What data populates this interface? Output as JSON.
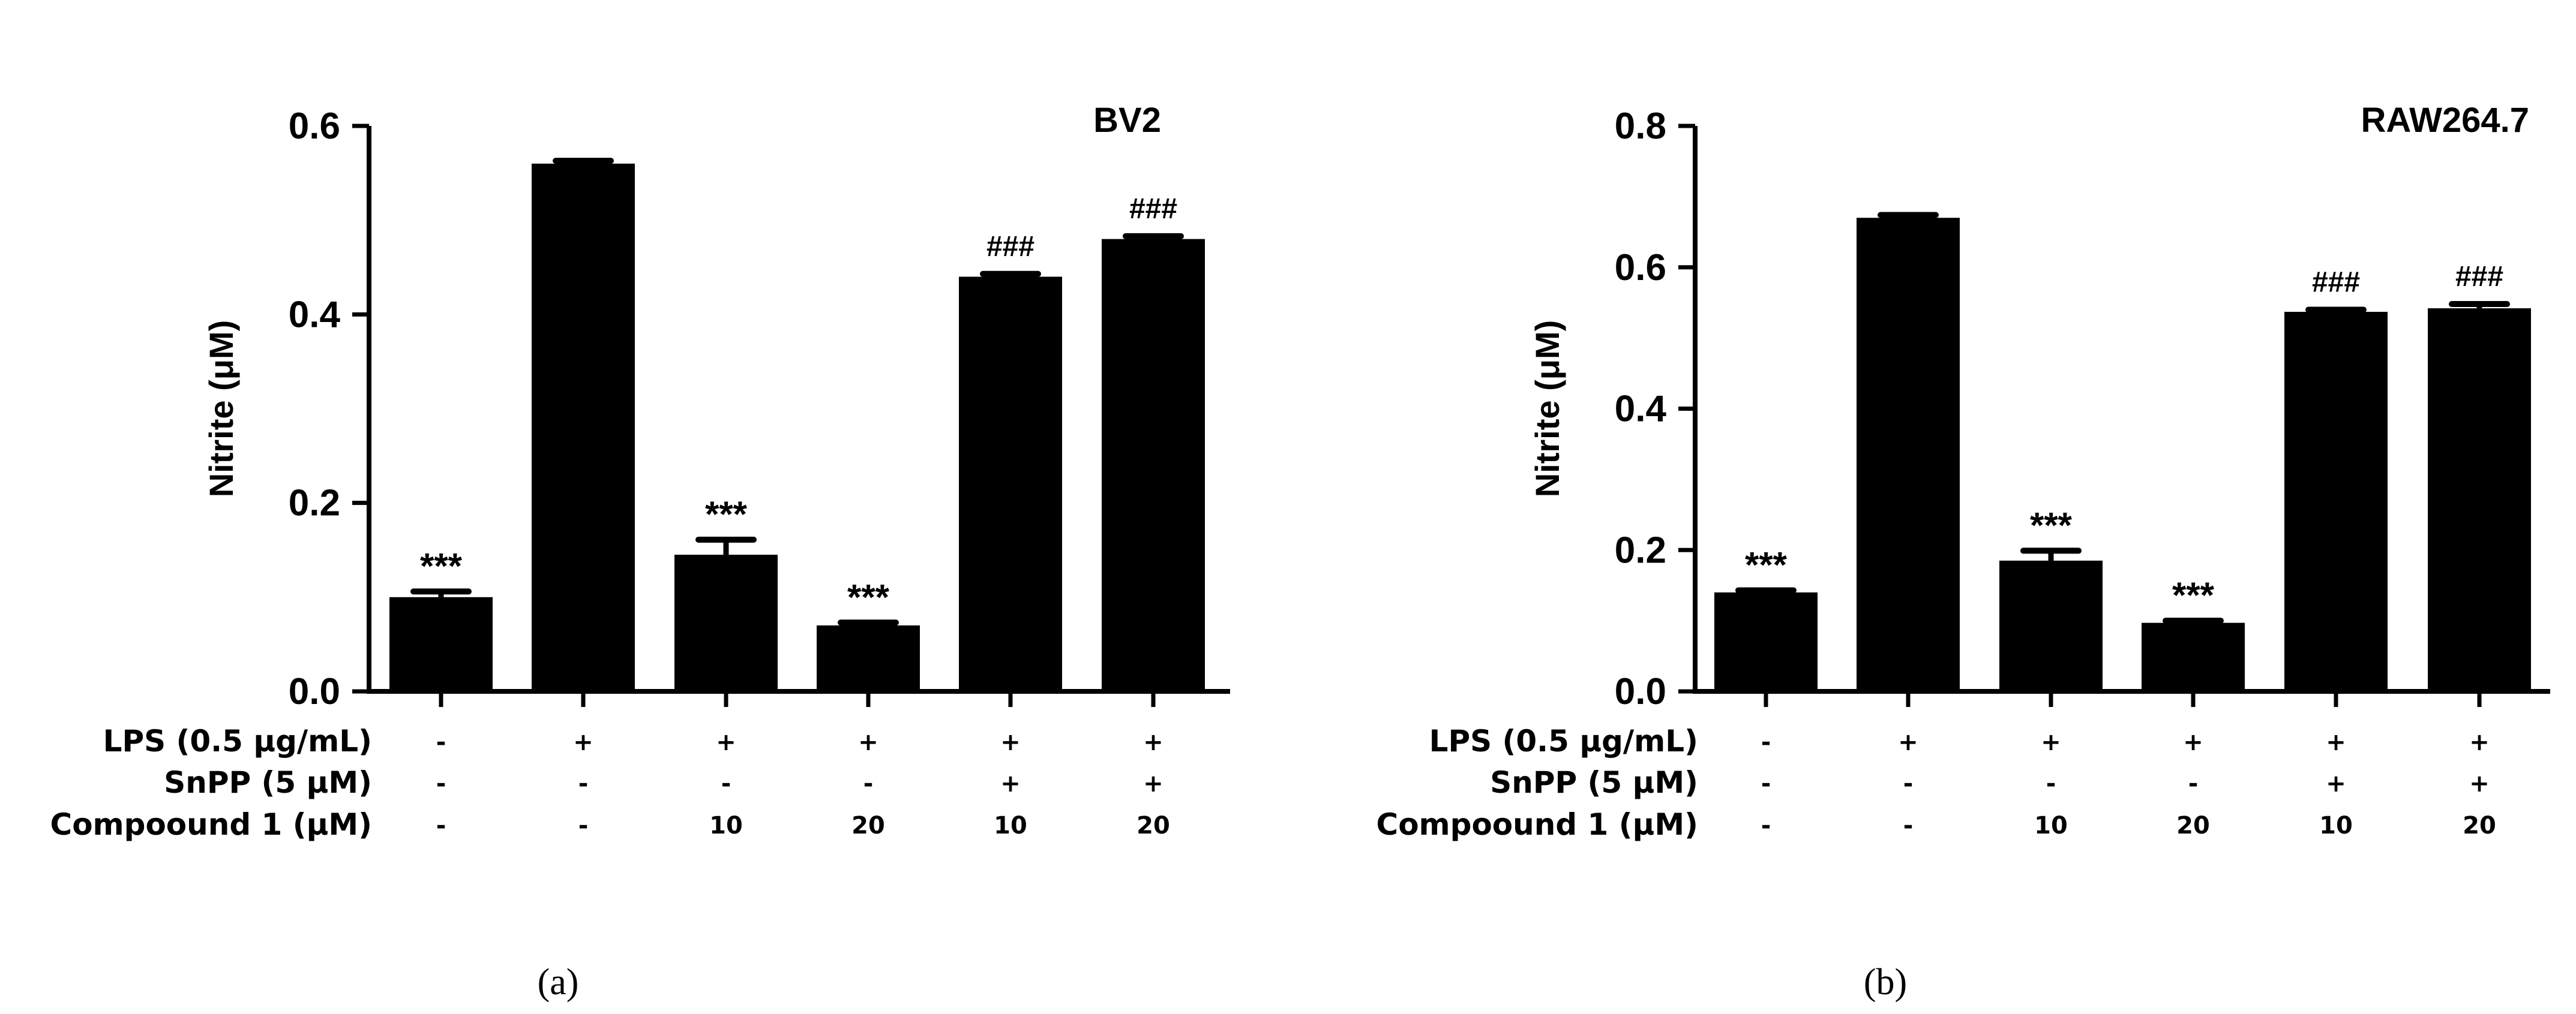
{
  "chart_data": [
    {
      "type": "bar",
      "panel_label": "(a)",
      "title": "BV2",
      "ylabel": "Nitrite (μM)",
      "ylim": [
        0,
        0.6
      ],
      "yticks": [
        "0.0",
        "0.2",
        "0.4",
        "0.6"
      ],
      "values": [
        0.1,
        0.56,
        0.145,
        0.07,
        0.44,
        0.48
      ],
      "errors": [
        0.006,
        0.003,
        0.016,
        0.003,
        0.003,
        0.003
      ],
      "annotations": [
        "***",
        "",
        "***",
        "***",
        "###",
        "###"
      ],
      "conditions": [
        {
          "label": "LPS (0.5 μg/mL)",
          "values": [
            "-",
            "+",
            "+",
            "+",
            "+",
            "+"
          ]
        },
        {
          "label": "SnPP (5 μM)",
          "values": [
            "-",
            "-",
            "-",
            "-",
            "+",
            "+"
          ]
        },
        {
          "label": "Compoound 1 (μM)",
          "values": [
            "-",
            "-",
            "10",
            "20",
            "10",
            "20"
          ]
        }
      ],
      "bar_color": "#000000"
    },
    {
      "type": "bar",
      "panel_label": "(b)",
      "title": "RAW264.7",
      "ylabel": "Nitrite (μM)",
      "ylim": [
        0,
        0.8
      ],
      "yticks": [
        "0.0",
        "0.2",
        "0.4",
        "0.6",
        "0.8"
      ],
      "values": [
        0.14,
        0.67,
        0.185,
        0.097,
        0.537,
        0.542
      ],
      "errors": [
        0.003,
        0.004,
        0.014,
        0.003,
        0.003,
        0.006
      ],
      "annotations": [
        "***",
        "",
        "***",
        "***",
        "###",
        "###"
      ],
      "conditions": [
        {
          "label": "LPS (0.5 μg/mL)",
          "values": [
            "-",
            "+",
            "+",
            "+",
            "+",
            "+"
          ]
        },
        {
          "label": "SnPP (5 μM)",
          "values": [
            "-",
            "-",
            "-",
            "-",
            "+",
            "+"
          ]
        },
        {
          "label": "Compoound 1 (μM)",
          "values": [
            "-",
            "-",
            "10",
            "20",
            "10",
            "20"
          ]
        }
      ],
      "bar_color": "#000000"
    }
  ]
}
